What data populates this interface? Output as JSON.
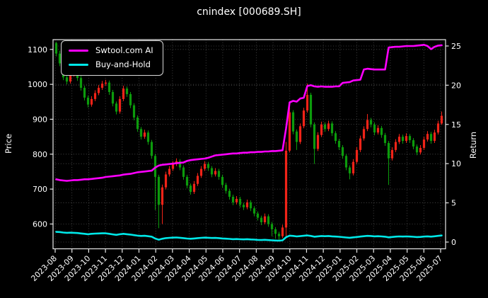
{
  "title": "cnindex [000689.SH]",
  "figure": {
    "background": "#000000",
    "text_color": "#ffffff",
    "grid_color": "#4f4f4f",
    "spine_color": "#e8e8e8"
  },
  "legend": {
    "position": "upper-left"
  },
  "chart_data": {
    "type": "candlestick",
    "title": "cnindex [000689.SH]",
    "grid": "dotted",
    "x_axis": {
      "labels": [
        "2023-08",
        "2023-09",
        "2023-10",
        "2023-11",
        "2023-12",
        "2024-01",
        "2024-02",
        "2024-03",
        "2024-04",
        "2024-05",
        "2024-06",
        "2024-07",
        "2024-08",
        "2024-09",
        "2024-10",
        "2024-11",
        "2024-12",
        "2025-01",
        "2025-02",
        "2025-03",
        "2025-04",
        "2025-05",
        "2025-06",
        "2025-07"
      ],
      "tick_rotation_deg": 45
    },
    "price_axis": {
      "label": "Price",
      "ticks": [
        600,
        700,
        800,
        900,
        1000,
        1100
      ],
      "range": [
        529,
        1128
      ]
    },
    "return_axis": {
      "label": "Return",
      "ticks": [
        0,
        5,
        10,
        15,
        20,
        25
      ],
      "range": [
        -0.86,
        25.81
      ]
    },
    "up_color": "#f02318",
    "down_color": "#0c9b0c",
    "candles_ohlc": [
      [
        1118,
        1122,
        1080,
        1088
      ],
      [
        1088,
        1096,
        1052,
        1060
      ],
      [
        1060,
        1066,
        1012,
        1020
      ],
      [
        1020,
        1028,
        1000,
        1008
      ],
      [
        1008,
        1038,
        1002,
        1030
      ],
      [
        1030,
        1043,
        1022,
        1035
      ],
      [
        1035,
        1041,
        1010,
        1018
      ],
      [
        1018,
        1024,
        982,
        990
      ],
      [
        990,
        996,
        954,
        962
      ],
      [
        962,
        968,
        934,
        942
      ],
      [
        942,
        966,
        936,
        958
      ],
      [
        958,
        983,
        952,
        975
      ],
      [
        975,
        998,
        969,
        990
      ],
      [
        990,
        1010,
        984,
        1002
      ],
      [
        1002,
        1013,
        996,
        1005
      ],
      [
        1005,
        1011,
        970,
        978
      ],
      [
        978,
        984,
        937,
        945
      ],
      [
        945,
        951,
        914,
        922
      ],
      [
        922,
        966,
        916,
        958
      ],
      [
        958,
        996,
        952,
        988
      ],
      [
        988,
        994,
        964,
        972
      ],
      [
        972,
        978,
        932,
        940
      ],
      [
        940,
        946,
        897,
        905
      ],
      [
        905,
        911,
        864,
        872
      ],
      [
        872,
        878,
        842,
        850
      ],
      [
        850,
        870,
        844,
        862
      ],
      [
        862,
        868,
        827,
        835
      ],
      [
        835,
        841,
        787,
        795
      ],
      [
        795,
        801,
        640,
        735
      ],
      [
        735,
        741,
        588,
        655
      ],
      [
        655,
        713,
        600,
        705
      ],
      [
        705,
        750,
        699,
        742
      ],
      [
        742,
        766,
        736,
        758
      ],
      [
        758,
        780,
        752,
        772
      ],
      [
        772,
        788,
        766,
        780
      ],
      [
        780,
        786,
        754,
        762
      ],
      [
        762,
        768,
        727,
        735
      ],
      [
        735,
        741,
        702,
        710
      ],
      [
        710,
        716,
        684,
        692
      ],
      [
        692,
        723,
        686,
        715
      ],
      [
        715,
        746,
        709,
        738
      ],
      [
        738,
        766,
        732,
        758
      ],
      [
        758,
        780,
        752,
        772
      ],
      [
        772,
        778,
        752,
        760
      ],
      [
        760,
        766,
        734,
        742
      ],
      [
        742,
        760,
        736,
        752
      ],
      [
        752,
        758,
        727,
        735
      ],
      [
        735,
        741,
        704,
        712
      ],
      [
        712,
        718,
        687,
        695
      ],
      [
        695,
        701,
        670,
        678
      ],
      [
        678,
        684,
        654,
        662
      ],
      [
        662,
        680,
        656,
        672
      ],
      [
        672,
        678,
        647,
        655
      ],
      [
        655,
        661,
        640,
        648
      ],
      [
        648,
        670,
        642,
        662
      ],
      [
        662,
        668,
        637,
        645
      ],
      [
        645,
        651,
        622,
        630
      ],
      [
        630,
        636,
        610,
        618
      ],
      [
        618,
        624,
        597,
        605
      ],
      [
        605,
        630,
        599,
        622
      ],
      [
        622,
        628,
        592,
        600
      ],
      [
        600,
        606,
        565,
        585
      ],
      [
        585,
        591,
        558,
        572
      ],
      [
        572,
        578,
        552,
        565
      ],
      [
        565,
        598,
        560,
        590
      ],
      [
        590,
        835,
        562,
        810
      ],
      [
        810,
        945,
        805,
        920
      ],
      [
        920,
        926,
        857,
        865
      ],
      [
        865,
        871,
        812,
        835
      ],
      [
        835,
        888,
        829,
        880
      ],
      [
        880,
        933,
        874,
        925
      ],
      [
        925,
        1002,
        919,
        970
      ],
      [
        970,
        976,
        877,
        885
      ],
      [
        885,
        891,
        772,
        815
      ],
      [
        815,
        863,
        809,
        855
      ],
      [
        855,
        893,
        849,
        885
      ],
      [
        885,
        891,
        864,
        872
      ],
      [
        872,
        896,
        866,
        888
      ],
      [
        888,
        894,
        852,
        860
      ],
      [
        860,
        866,
        830,
        838
      ],
      [
        838,
        844,
        812,
        820
      ],
      [
        820,
        826,
        787,
        795
      ],
      [
        795,
        801,
        754,
        762
      ],
      [
        762,
        768,
        728,
        745
      ],
      [
        745,
        786,
        739,
        778
      ],
      [
        778,
        820,
        772,
        812
      ],
      [
        812,
        853,
        806,
        845
      ],
      [
        845,
        880,
        839,
        872
      ],
      [
        872,
        915,
        866,
        898
      ],
      [
        898,
        904,
        877,
        885
      ],
      [
        885,
        891,
        854,
        862
      ],
      [
        862,
        883,
        856,
        875
      ],
      [
        875,
        881,
        847,
        855
      ],
      [
        855,
        861,
        824,
        832
      ],
      [
        832,
        838,
        712,
        788
      ],
      [
        788,
        820,
        782,
        812
      ],
      [
        812,
        843,
        806,
        835
      ],
      [
        835,
        858,
        829,
        850
      ],
      [
        850,
        856,
        830,
        838
      ],
      [
        838,
        860,
        832,
        852
      ],
      [
        852,
        858,
        832,
        840
      ],
      [
        840,
        846,
        814,
        822
      ],
      [
        822,
        828,
        797,
        805
      ],
      [
        805,
        826,
        799,
        818
      ],
      [
        818,
        850,
        812,
        842
      ],
      [
        842,
        866,
        836,
        858
      ],
      [
        858,
        864,
        830,
        838
      ],
      [
        838,
        870,
        832,
        862
      ],
      [
        862,
        896,
        856,
        888
      ],
      [
        888,
        922,
        884,
        910
      ]
    ],
    "series": [
      {
        "name": "Swtool.com AI",
        "axis": "return",
        "color": "#ff00ff",
        "values": [
          8.0,
          7.9,
          7.85,
          7.8,
          7.85,
          7.9,
          7.9,
          7.95,
          8.0,
          8.0,
          8.05,
          8.1,
          8.15,
          8.2,
          8.3,
          8.35,
          8.4,
          8.45,
          8.5,
          8.6,
          8.65,
          8.7,
          8.8,
          8.9,
          8.95,
          9.0,
          9.05,
          9.1,
          9.5,
          9.75,
          9.85,
          9.9,
          9.95,
          10.0,
          10.05,
          10.1,
          10.15,
          10.35,
          10.45,
          10.5,
          10.55,
          10.6,
          10.65,
          10.75,
          10.9,
          11.05,
          11.1,
          11.15,
          11.2,
          11.25,
          11.3,
          11.3,
          11.35,
          11.4,
          11.4,
          11.45,
          11.45,
          11.5,
          11.5,
          11.55,
          11.55,
          11.6,
          11.6,
          11.65,
          11.7,
          14.5,
          17.8,
          18.0,
          17.9,
          18.3,
          18.4,
          19.9,
          20.0,
          19.85,
          19.8,
          19.85,
          19.8,
          19.8,
          19.8,
          19.85,
          19.85,
          20.3,
          20.35,
          20.4,
          20.6,
          20.65,
          20.7,
          22.0,
          22.1,
          22.05,
          22.0,
          22.0,
          22.0,
          22.0,
          24.8,
          24.85,
          24.9,
          24.9,
          24.95,
          25.0,
          25.0,
          25.0,
          25.05,
          25.1,
          25.15,
          25.0,
          24.6,
          24.9,
          25.05,
          25.1
        ]
      },
      {
        "name": "Buy-and-Hold",
        "axis": "return",
        "color": "#00e8e8",
        "values": [
          1.3,
          1.28,
          1.22,
          1.18,
          1.2,
          1.18,
          1.15,
          1.1,
          1.05,
          1.0,
          1.05,
          1.08,
          1.1,
          1.12,
          1.12,
          1.05,
          0.98,
          0.92,
          1.0,
          1.05,
          1.0,
          0.95,
          0.88,
          0.82,
          0.78,
          0.8,
          0.75,
          0.68,
          0.45,
          0.3,
          0.42,
          0.5,
          0.54,
          0.57,
          0.58,
          0.55,
          0.5,
          0.45,
          0.42,
          0.46,
          0.5,
          0.54,
          0.57,
          0.55,
          0.52,
          0.53,
          0.5,
          0.46,
          0.43,
          0.4,
          0.37,
          0.39,
          0.36,
          0.34,
          0.37,
          0.33,
          0.31,
          0.28,
          0.26,
          0.29,
          0.25,
          0.22,
          0.2,
          0.18,
          0.22,
          0.62,
          0.82,
          0.78,
          0.72,
          0.76,
          0.8,
          0.85,
          0.78,
          0.68,
          0.73,
          0.77,
          0.75,
          0.77,
          0.73,
          0.7,
          0.67,
          0.63,
          0.58,
          0.55,
          0.6,
          0.65,
          0.7,
          0.75,
          0.79,
          0.77,
          0.73,
          0.75,
          0.72,
          0.68,
          0.6,
          0.65,
          0.69,
          0.72,
          0.7,
          0.72,
          0.7,
          0.67,
          0.64,
          0.66,
          0.7,
          0.73,
          0.69,
          0.74,
          0.79,
          0.84
        ]
      }
    ]
  }
}
